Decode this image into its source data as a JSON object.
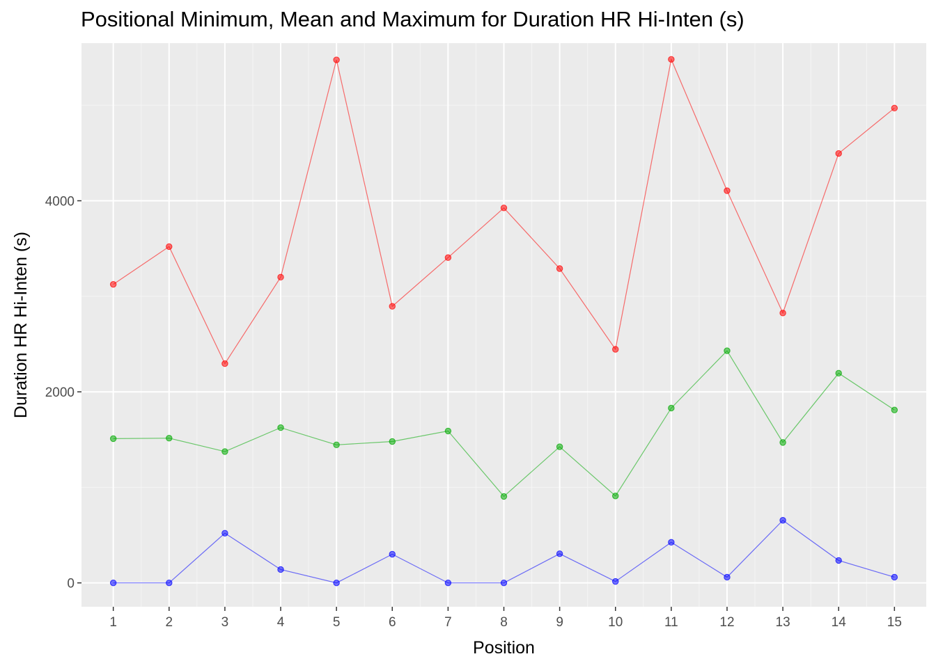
{
  "chart_data": {
    "type": "line",
    "title": "Positional Minimum, Mean and Maximum for Duration HR Hi-Inten (s)",
    "xlabel": "Position",
    "ylabel": "Duration HR Hi-Inten (s)",
    "x": [
      1,
      2,
      3,
      4,
      5,
      6,
      7,
      8,
      9,
      10,
      11,
      12,
      13,
      14,
      15
    ],
    "x_ticks": [
      "1",
      "2",
      "3",
      "4",
      "5",
      "6",
      "7",
      "8",
      "9",
      "10",
      "11",
      "12",
      "13",
      "14",
      "15"
    ],
    "y_ticks": [
      0,
      2000,
      4000
    ],
    "y_tick_labels": [
      "0",
      "2000",
      "4000"
    ],
    "xlim": [
      0.43,
      15.57
    ],
    "ylim": [
      -250,
      5650
    ],
    "grid": true,
    "legend": "none",
    "series": [
      {
        "color": "#ff0000",
        "values": [
          3125,
          3520,
          2295,
          3200,
          5475,
          2895,
          3405,
          3925,
          3290,
          2445,
          5480,
          4105,
          2825,
          4495,
          4970
        ]
      },
      {
        "color": "#00aa00",
        "values": [
          1510,
          1515,
          1375,
          1625,
          1445,
          1480,
          1590,
          905,
          1425,
          910,
          1830,
          2430,
          1470,
          2195,
          1810
        ]
      },
      {
        "color": "#0000ff",
        "values": [
          0,
          0,
          520,
          140,
          0,
          300,
          0,
          0,
          305,
          15,
          425,
          60,
          655,
          235,
          60
        ]
      }
    ]
  }
}
